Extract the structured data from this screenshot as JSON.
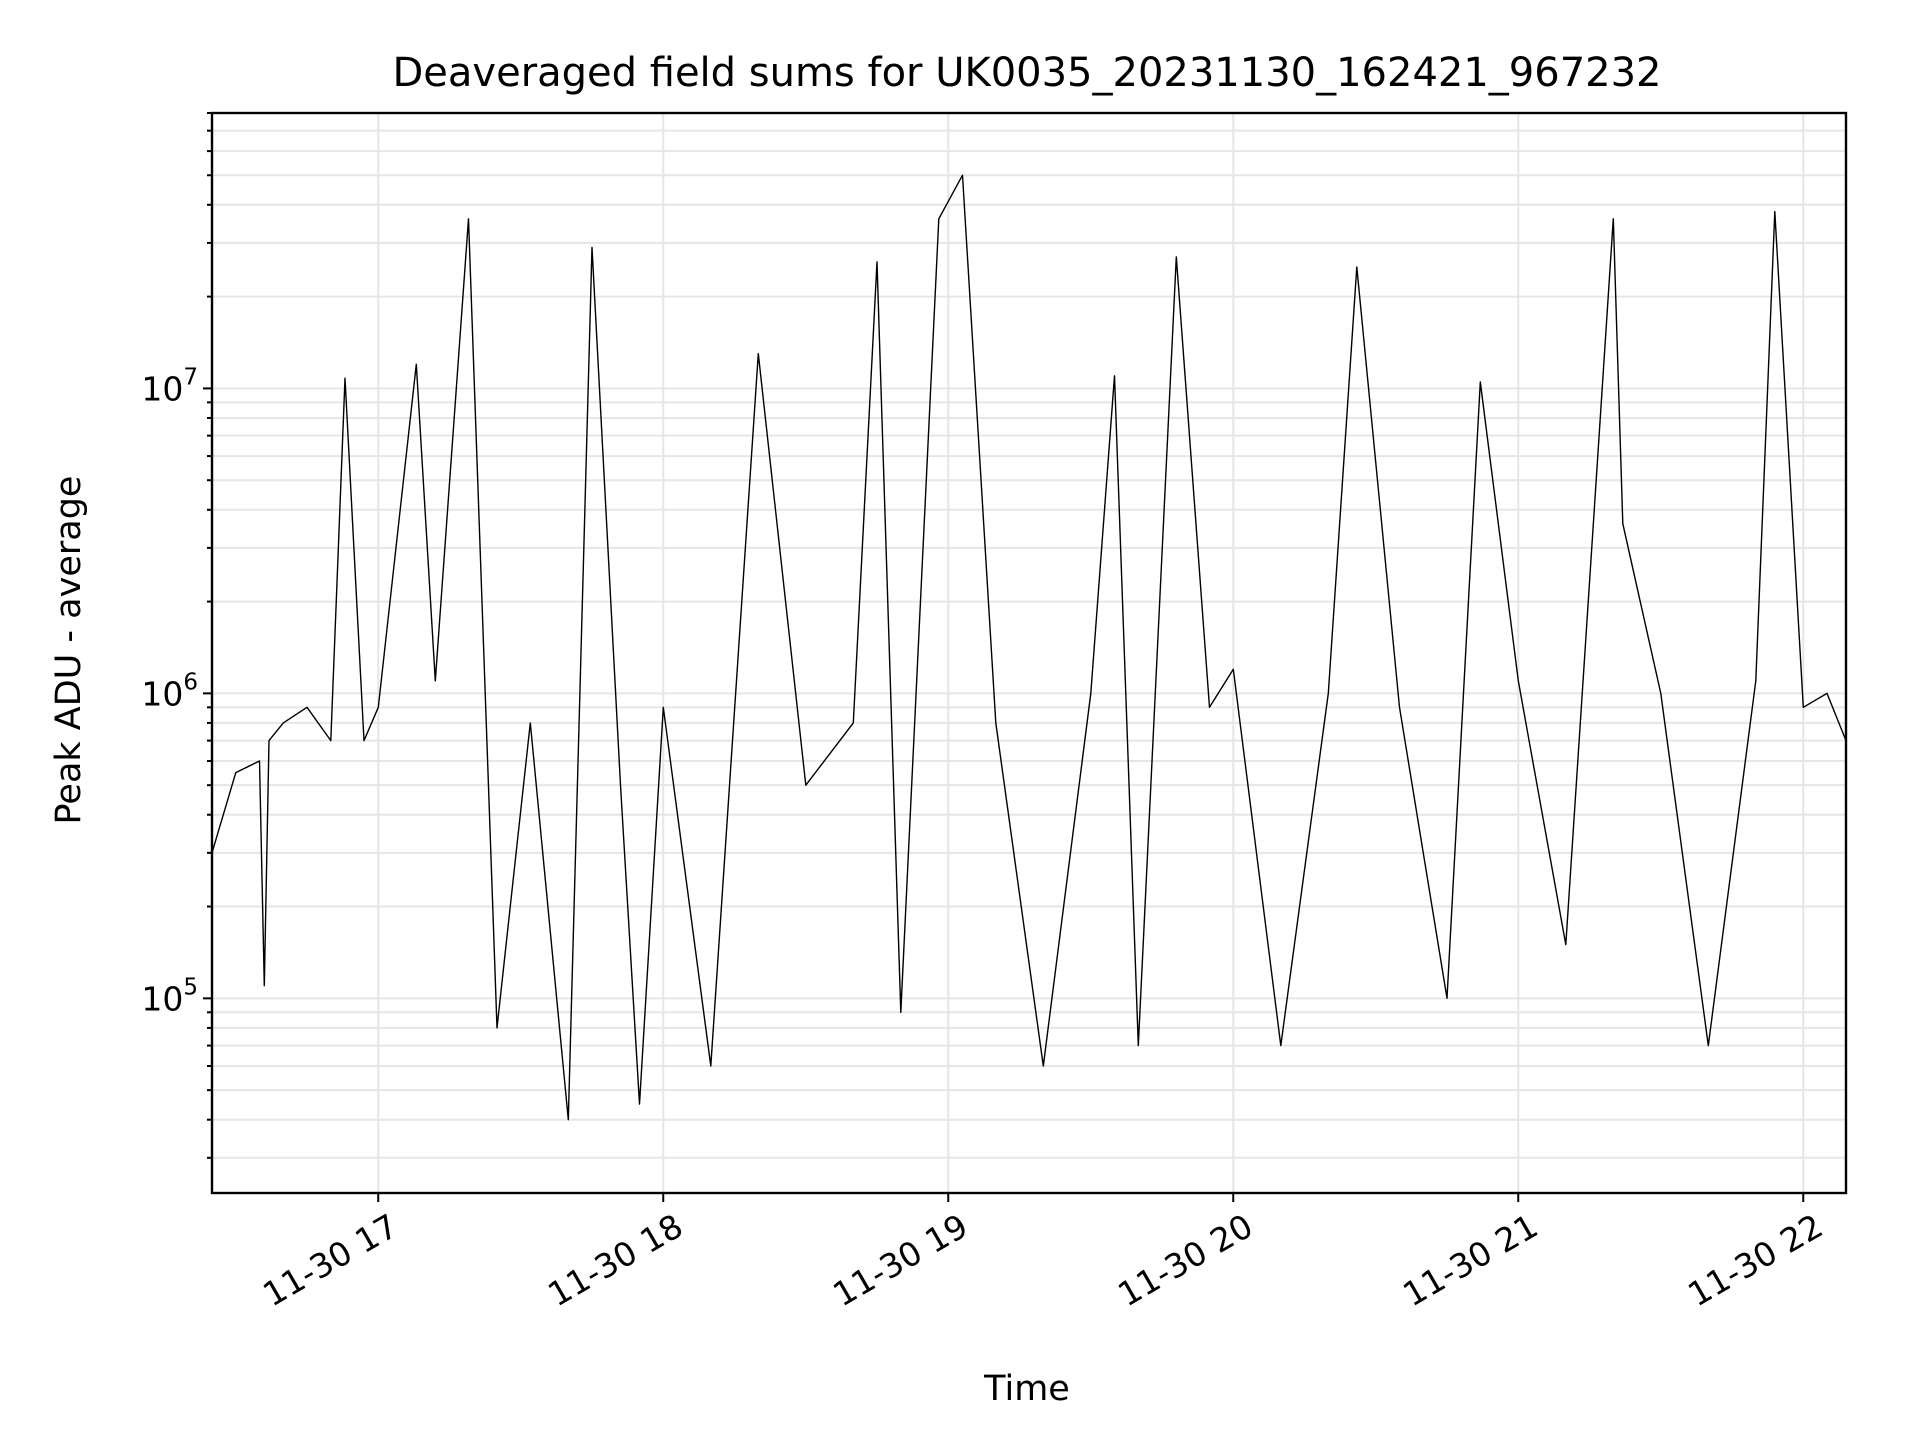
{
  "chart_data": {
    "type": "line",
    "title": "Deaveraged field sums for UK0035_20231130_162421_967232",
    "xlabel": "Time",
    "ylabel": "Peak ADU - average",
    "x_ticks": [
      {
        "t": "2023-11-30T17:00",
        "label": "11-30 17"
      },
      {
        "t": "2023-11-30T18:00",
        "label": "11-30 18"
      },
      {
        "t": "2023-11-30T19:00",
        "label": "11-30 19"
      },
      {
        "t": "2023-11-30T20:00",
        "label": "11-30 20"
      },
      {
        "t": "2023-11-30T21:00",
        "label": "11-30 21"
      },
      {
        "t": "2023-11-30T22:00",
        "label": "11-30 22"
      }
    ],
    "y_ticks": [
      {
        "value": 100000,
        "base": "10",
        "exp": "5"
      },
      {
        "value": 1000000,
        "base": "10",
        "exp": "6"
      },
      {
        "value": 10000000,
        "base": "10",
        "exp": "7"
      }
    ],
    "xlim": [
      "2023-11-30T16:25",
      "2023-11-30T22:09"
    ],
    "ylim": [
      23000,
      80000000
    ],
    "yscale": "log",
    "grid": true,
    "series": [
      {
        "color": "#000000",
        "x": [
          "2023-11-30T16:25",
          "2023-11-30T16:30",
          "2023-11-30T16:35",
          "2023-11-30T16:36",
          "2023-11-30T16:37",
          "2023-11-30T16:40",
          "2023-11-30T16:45",
          "2023-11-30T16:50",
          "2023-11-30T16:53",
          "2023-11-30T16:57",
          "2023-11-30T17:00",
          "2023-11-30T17:08",
          "2023-11-30T17:12",
          "2023-11-30T17:19",
          "2023-11-30T17:25",
          "2023-11-30T17:32",
          "2023-11-30T17:40",
          "2023-11-30T17:45",
          "2023-11-30T17:51",
          "2023-11-30T17:55",
          "2023-11-30T18:00",
          "2023-11-30T18:10",
          "2023-11-30T18:20",
          "2023-11-30T18:30",
          "2023-11-30T18:40",
          "2023-11-30T18:45",
          "2023-11-30T18:50",
          "2023-11-30T18:58",
          "2023-11-30T19:03",
          "2023-11-30T19:10",
          "2023-11-30T19:20",
          "2023-11-30T19:30",
          "2023-11-30T19:35",
          "2023-11-30T19:40",
          "2023-11-30T19:48",
          "2023-11-30T19:55",
          "2023-11-30T20:00",
          "2023-11-30T20:10",
          "2023-11-30T20:20",
          "2023-11-30T20:26",
          "2023-11-30T20:35",
          "2023-11-30T20:45",
          "2023-11-30T20:52",
          "2023-11-30T21:00",
          "2023-11-30T21:10",
          "2023-11-30T21:20",
          "2023-11-30T21:22",
          "2023-11-30T21:30",
          "2023-11-30T21:40",
          "2023-11-30T21:50",
          "2023-11-30T21:54",
          "2023-11-30T22:00",
          "2023-11-30T22:05",
          "2023-11-30T22:09"
        ],
        "y": [
          300000,
          550000,
          600000,
          110000,
          700000,
          800000,
          900000,
          700000,
          10800000,
          700000,
          900000,
          12000000,
          1100000,
          36000000,
          80000,
          800000,
          40000,
          29000000,
          500000,
          45000,
          900000,
          60000,
          13000000,
          500000,
          800000,
          26000000,
          90000,
          36000000,
          50000000,
          800000,
          60000,
          1000000,
          11000000,
          70000,
          27000000,
          900000,
          1200000,
          70000,
          1000000,
          25000000,
          900000,
          100000,
          10500000,
          1100000,
          150000,
          36000000,
          3600000,
          1000000,
          70000,
          1100000,
          38000000,
          900000,
          1000000,
          700000
        ]
      }
    ]
  }
}
